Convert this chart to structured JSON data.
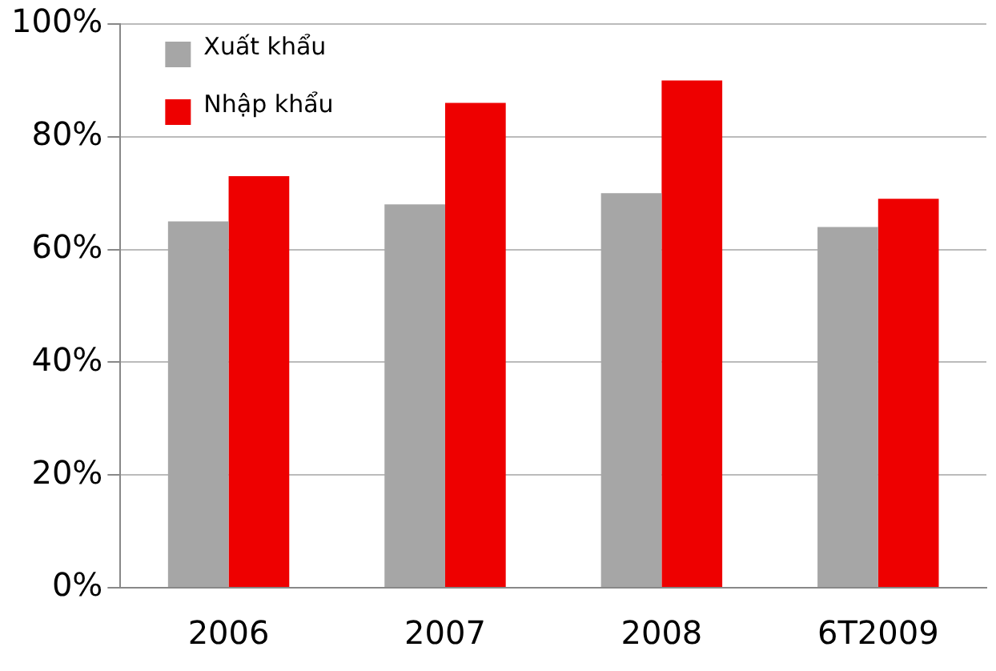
{
  "chart_data": {
    "type": "bar",
    "categories": [
      "2006",
      "2007",
      "2008",
      "6T2009"
    ],
    "series": [
      {
        "name": "Xuất khẩu",
        "color": "#a6a6a6",
        "values": [
          65,
          68,
          70,
          64
        ]
      },
      {
        "name": "Nhập khẩu",
        "color": "#ee0000",
        "values": [
          73,
          86,
          90,
          69
        ]
      }
    ],
    "ylim": [
      0,
      100
    ],
    "yticks": [
      {
        "value": 0,
        "label": "0%"
      },
      {
        "value": 20,
        "label": "20%"
      },
      {
        "value": 40,
        "label": "40%"
      },
      {
        "value": 60,
        "label": "60%"
      },
      {
        "value": 80,
        "label": "80%"
      },
      {
        "value": 100,
        "label": "100%"
      }
    ],
    "grid": "y",
    "legend": "top left"
  }
}
